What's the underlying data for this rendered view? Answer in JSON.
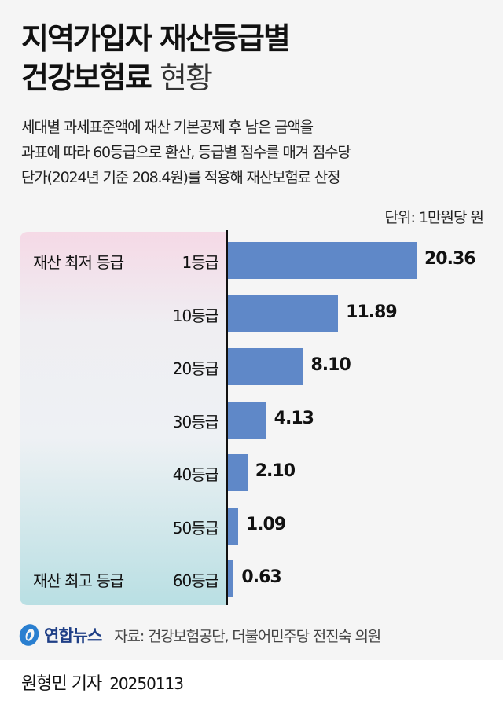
{
  "header": {
    "title_line1": "지역가입자 재산등급별",
    "title_line2_bold": "건강보험료",
    "title_line2_light": "현황"
  },
  "description": {
    "line1": "세대별 과세표준액에 재산 기본공제 후 남은 금액을",
    "line2": "과표에 따라 60등급으로 환산, 등급별 점수를 매겨 점수당",
    "line3": "단가(2024년 기준 208.4원)를 적용해 재산보험료 산정"
  },
  "unit_label": "단위: 1만원당 원",
  "tags": {
    "lowest": "재산 최저 등급",
    "highest": "재산 최고 등급"
  },
  "colors": {
    "bar": "#5f88c8",
    "panel_top": "#f5d9e6",
    "panel_bottom": "#b9dfe3",
    "logo": "#1f3f86"
  },
  "chart_data": {
    "type": "bar",
    "orientation": "horizontal",
    "title": "지역가입자 재산등급별 건강보험료 현황",
    "unit": "1만원당 원",
    "categories": [
      "1등급",
      "10등급",
      "20등급",
      "30등급",
      "40등급",
      "50등급",
      "60등급"
    ],
    "values": [
      20.36,
      11.89,
      8.1,
      4.13,
      2.1,
      1.09,
      0.63
    ],
    "value_labels": [
      "20.36",
      "11.89",
      "8.10",
      "4.13",
      "2.10",
      "1.09",
      "0.63"
    ],
    "annotations": [
      {
        "category": "1등급",
        "text": "재산 최저 등급"
      },
      {
        "category": "60등급",
        "text": "재산 최고 등급"
      }
    ],
    "xlabel": "",
    "ylabel": "",
    "grid": false
  },
  "footer": {
    "logo_text": "연합뉴스",
    "source": "자료: 건강보험공단, 더불어민주당 전진숙 의원"
  },
  "byline": {
    "author": "원형민 기자",
    "date": "20250113"
  }
}
